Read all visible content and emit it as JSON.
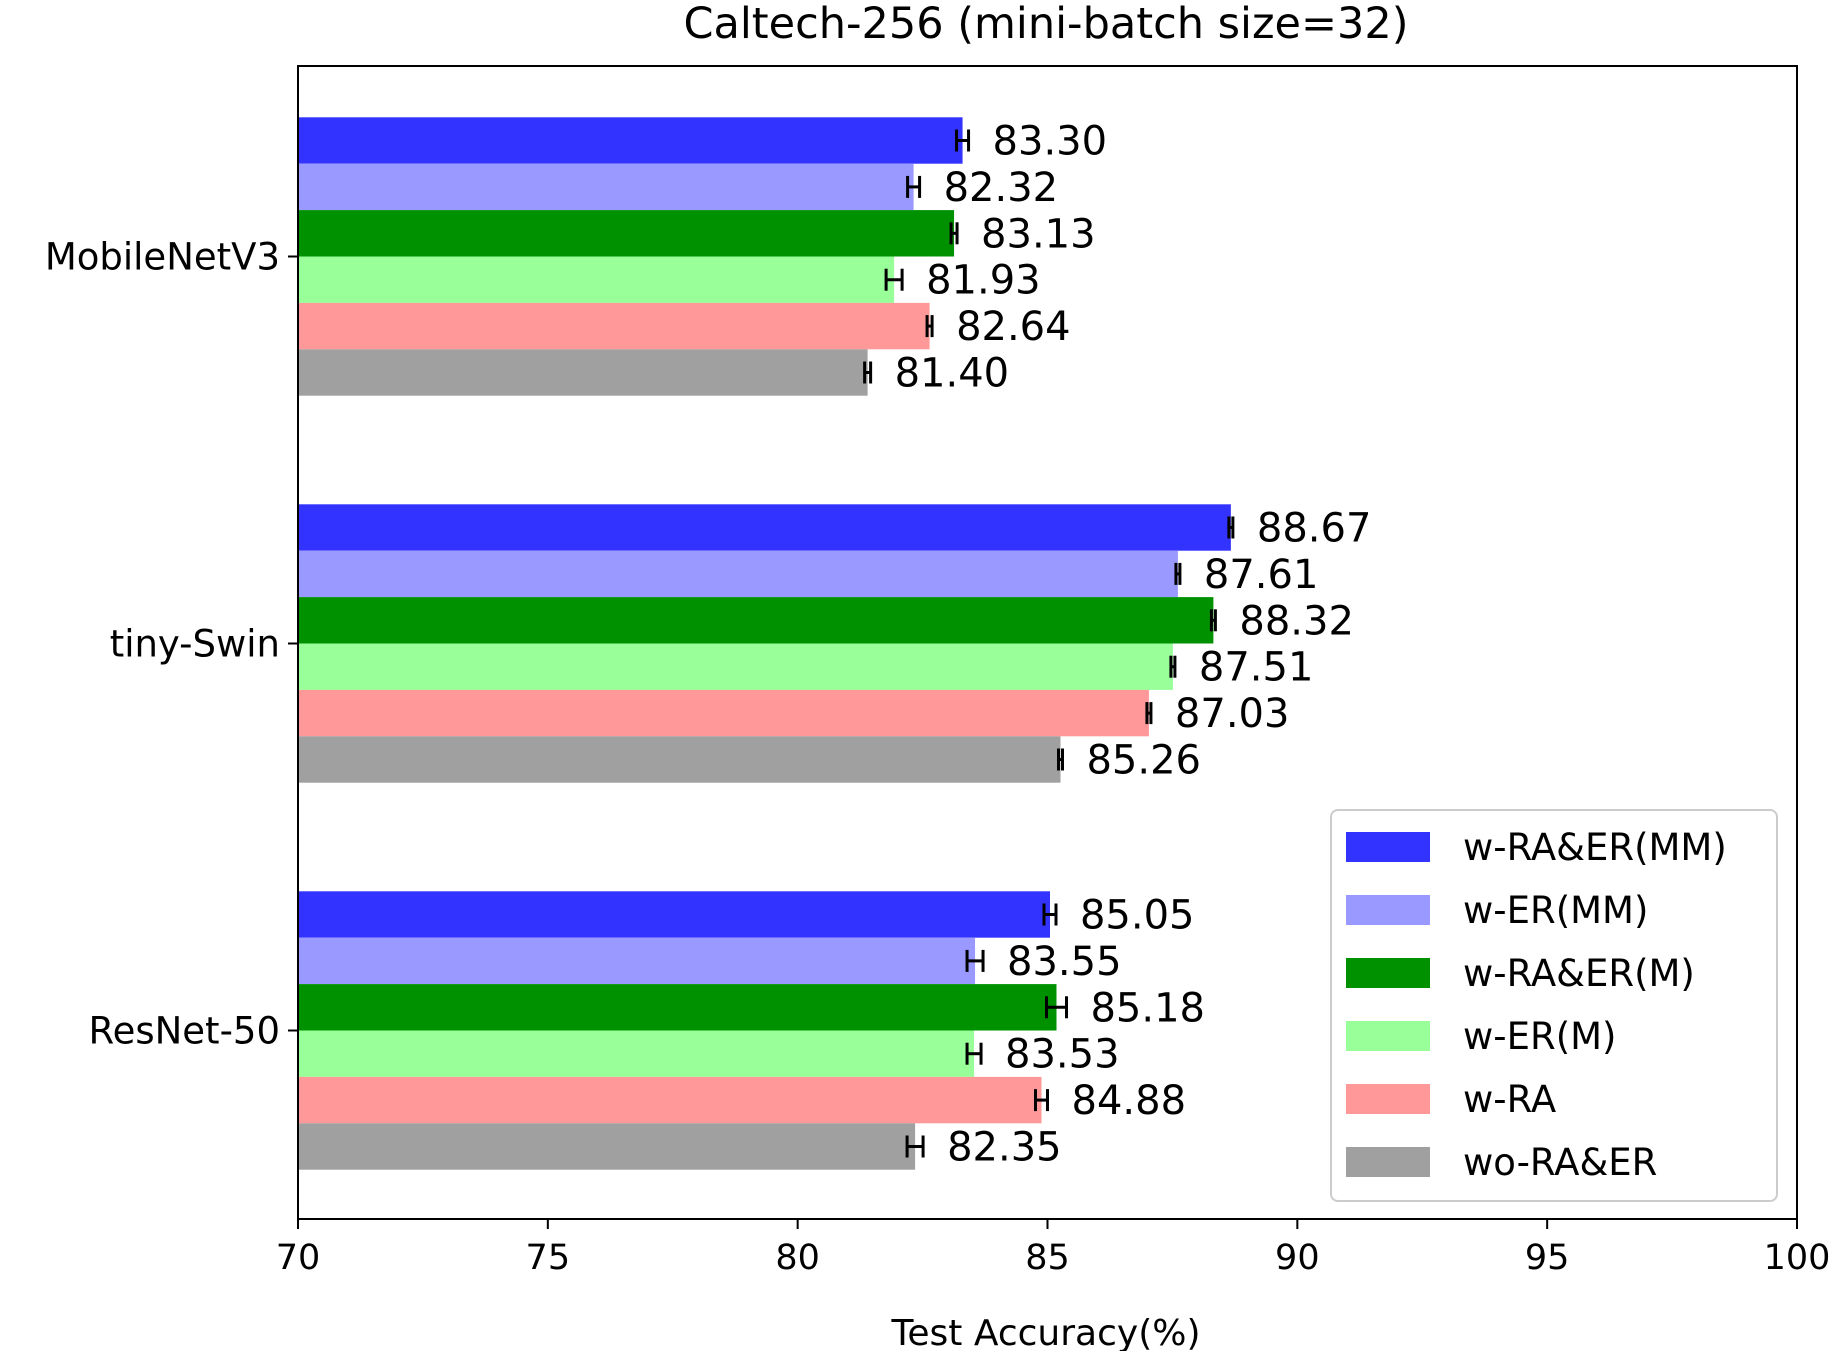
{
  "chart_data": {
    "type": "bar",
    "orientation": "horizontal",
    "title": "Caltech-256 (mini-batch size=32)",
    "xlabel": "Test Accuracy(%)",
    "ylabel": "",
    "xlim": [
      70,
      100
    ],
    "xticks": [
      "70",
      "75",
      "80",
      "85",
      "90",
      "95",
      "100"
    ],
    "categories": [
      "MobileNetV3",
      "tiny-Swin",
      "ResNet-50"
    ],
    "grid": false,
    "legend_position": "lower-right",
    "error_bars": true,
    "series": [
      {
        "name": "w-RA&ER(MM)",
        "color": "#3333ff",
        "values": [
          83.3,
          88.67,
          85.05
        ],
        "labels": [
          "83.30",
          "88.67",
          "85.05"
        ],
        "errors": [
          0.12,
          0.04,
          0.12
        ]
      },
      {
        "name": "w-ER(MM)",
        "color": "#9999ff",
        "values": [
          82.32,
          87.61,
          83.55
        ],
        "labels": [
          "82.32",
          "87.61",
          "83.55"
        ],
        "errors": [
          0.12,
          0.04,
          0.16
        ]
      },
      {
        "name": "w-RA&ER(M)",
        "color": "#009100",
        "values": [
          83.13,
          88.32,
          85.18
        ],
        "labels": [
          "83.13",
          "88.32",
          "85.18"
        ],
        "errors": [
          0.06,
          0.04,
          0.2
        ]
      },
      {
        "name": "w-ER(M)",
        "color": "#99ff99",
        "values": [
          81.93,
          87.51,
          83.53
        ],
        "labels": [
          "81.93",
          "87.51",
          "83.53"
        ],
        "errors": [
          0.16,
          0.04,
          0.14
        ]
      },
      {
        "name": "w-RA",
        "color": "#ff9999",
        "values": [
          82.64,
          87.03,
          84.88
        ],
        "labels": [
          "82.64",
          "87.03",
          "84.88"
        ],
        "errors": [
          0.05,
          0.04,
          0.12
        ]
      },
      {
        "name": "wo-RA&ER",
        "color": "#a0a0a0",
        "values": [
          81.4,
          85.26,
          82.35
        ],
        "labels": [
          "81.40",
          "85.26",
          "82.35"
        ],
        "errors": [
          0.06,
          0.04,
          0.16
        ]
      }
    ]
  }
}
